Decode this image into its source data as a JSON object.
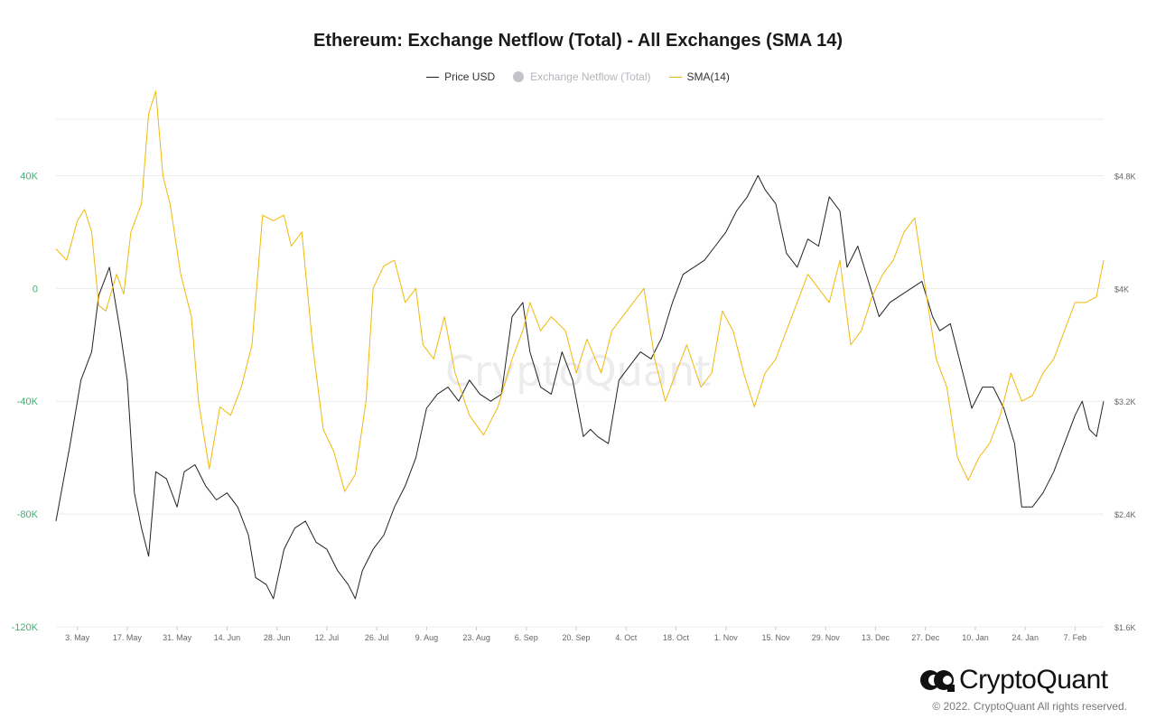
{
  "chart_data": {
    "type": "line",
    "title": "Ethereum: Exchange Netflow (Total) - All Exchanges (SMA 14)",
    "legend": {
      "placement": "top-center",
      "items": [
        {
          "label": "Price USD",
          "color": "#222222",
          "marker": "line",
          "active": true
        },
        {
          "label": "Exchange Netflow (Total)",
          "color": "#c2c2c8",
          "marker": "circle",
          "active": false
        },
        {
          "label": "SMA(14)",
          "color": "#f0b90b",
          "marker": "line",
          "active": true
        }
      ]
    },
    "y_left": {
      "range": [
        -120000,
        60000
      ],
      "ticks": [
        40000,
        0,
        -40000,
        -80000,
        -120000
      ],
      "tick_labels": [
        "40K",
        "0",
        "-40K",
        "-80K",
        "-120K"
      ],
      "color": "#3cb371"
    },
    "y_right": {
      "range": [
        1600,
        5200
      ],
      "ticks": [
        4800,
        4000,
        3200,
        2400,
        1600
      ],
      "tick_labels": [
        "$4.8K",
        "$4K",
        "$3.2K",
        "$2.4K",
        "$1.6K"
      ]
    },
    "x_range": [
      "2021-04-27",
      "2022-02-15"
    ],
    "x_ticks": [
      {
        "label": "3. May",
        "date": "2021-05-03"
      },
      {
        "label": "17. May",
        "date": "2021-05-17"
      },
      {
        "label": "31. May",
        "date": "2021-05-31"
      },
      {
        "label": "14. Jun",
        "date": "2021-06-14"
      },
      {
        "label": "28. Jun",
        "date": "2021-06-28"
      },
      {
        "label": "12. Jul",
        "date": "2021-07-12"
      },
      {
        "label": "26. Jul",
        "date": "2021-07-26"
      },
      {
        "label": "9. Aug",
        "date": "2021-08-09"
      },
      {
        "label": "23. Aug",
        "date": "2021-08-23"
      },
      {
        "label": "6. Sep",
        "date": "2021-09-06"
      },
      {
        "label": "20. Sep",
        "date": "2021-09-20"
      },
      {
        "label": "4. Oct",
        "date": "2021-10-04"
      },
      {
        "label": "18. Oct",
        "date": "2021-10-18"
      },
      {
        "label": "1. Nov",
        "date": "2021-11-01"
      },
      {
        "label": "15. Nov",
        "date": "2021-11-15"
      },
      {
        "label": "29. Nov",
        "date": "2021-11-29"
      },
      {
        "label": "13. Dec",
        "date": "2021-12-13"
      },
      {
        "label": "27. Dec",
        "date": "2021-12-27"
      },
      {
        "label": "10. Jan",
        "date": "2022-01-10"
      },
      {
        "label": "24. Jan",
        "date": "2022-01-24"
      },
      {
        "label": "7. Feb",
        "date": "2022-02-07"
      }
    ],
    "grid": true,
    "series": [
      {
        "name": "Price USD",
        "axis": "right",
        "color": "#222222",
        "points": [
          [
            "2021-04-27",
            2350
          ],
          [
            "2021-05-01",
            2900
          ],
          [
            "2021-05-04",
            3350
          ],
          [
            "2021-05-07",
            3550
          ],
          [
            "2021-05-09",
            3950
          ],
          [
            "2021-05-12",
            4150
          ],
          [
            "2021-05-15",
            3700
          ],
          [
            "2021-05-17",
            3350
          ],
          [
            "2021-05-19",
            2550
          ],
          [
            "2021-05-21",
            2300
          ],
          [
            "2021-05-23",
            2100
          ],
          [
            "2021-05-25",
            2700
          ],
          [
            "2021-05-28",
            2650
          ],
          [
            "2021-05-31",
            2450
          ],
          [
            "2021-06-02",
            2700
          ],
          [
            "2021-06-05",
            2750
          ],
          [
            "2021-06-08",
            2600
          ],
          [
            "2021-06-11",
            2500
          ],
          [
            "2021-06-14",
            2550
          ],
          [
            "2021-06-17",
            2450
          ],
          [
            "2021-06-20",
            2250
          ],
          [
            "2021-06-22",
            1950
          ],
          [
            "2021-06-25",
            1900
          ],
          [
            "2021-06-27",
            1800
          ],
          [
            "2021-06-30",
            2150
          ],
          [
            "2021-07-03",
            2300
          ],
          [
            "2021-07-06",
            2350
          ],
          [
            "2021-07-09",
            2200
          ],
          [
            "2021-07-12",
            2150
          ],
          [
            "2021-07-15",
            2000
          ],
          [
            "2021-07-18",
            1900
          ],
          [
            "2021-07-20",
            1800
          ],
          [
            "2021-07-22",
            2000
          ],
          [
            "2021-07-25",
            2150
          ],
          [
            "2021-07-28",
            2250
          ],
          [
            "2021-07-31",
            2450
          ],
          [
            "2021-08-03",
            2600
          ],
          [
            "2021-08-06",
            2800
          ],
          [
            "2021-08-09",
            3150
          ],
          [
            "2021-08-12",
            3250
          ],
          [
            "2021-08-15",
            3300
          ],
          [
            "2021-08-18",
            3200
          ],
          [
            "2021-08-21",
            3350
          ],
          [
            "2021-08-24",
            3250
          ],
          [
            "2021-08-27",
            3200
          ],
          [
            "2021-08-30",
            3250
          ],
          [
            "2021-09-02",
            3800
          ],
          [
            "2021-09-05",
            3900
          ],
          [
            "2021-09-07",
            3550
          ],
          [
            "2021-09-10",
            3300
          ],
          [
            "2021-09-13",
            3250
          ],
          [
            "2021-09-16",
            3550
          ],
          [
            "2021-09-19",
            3350
          ],
          [
            "2021-09-22",
            2950
          ],
          [
            "2021-09-24",
            3000
          ],
          [
            "2021-09-26",
            2950
          ],
          [
            "2021-09-29",
            2900
          ],
          [
            "2021-10-02",
            3350
          ],
          [
            "2021-10-05",
            3450
          ],
          [
            "2021-10-08",
            3550
          ],
          [
            "2021-10-11",
            3500
          ],
          [
            "2021-10-14",
            3650
          ],
          [
            "2021-10-17",
            3900
          ],
          [
            "2021-10-20",
            4100
          ],
          [
            "2021-10-23",
            4150
          ],
          [
            "2021-10-26",
            4200
          ],
          [
            "2021-10-29",
            4300
          ],
          [
            "2021-11-01",
            4400
          ],
          [
            "2021-11-04",
            4550
          ],
          [
            "2021-11-07",
            4650
          ],
          [
            "2021-11-10",
            4800
          ],
          [
            "2021-11-12",
            4700
          ],
          [
            "2021-11-15",
            4600
          ],
          [
            "2021-11-18",
            4250
          ],
          [
            "2021-11-21",
            4150
          ],
          [
            "2021-11-24",
            4350
          ],
          [
            "2021-11-27",
            4300
          ],
          [
            "2021-11-30",
            4650
          ],
          [
            "2021-12-03",
            4550
          ],
          [
            "2021-12-05",
            4150
          ],
          [
            "2021-12-08",
            4300
          ],
          [
            "2021-12-11",
            4050
          ],
          [
            "2021-12-14",
            3800
          ],
          [
            "2021-12-17",
            3900
          ],
          [
            "2021-12-20",
            3950
          ],
          [
            "2021-12-23",
            4000
          ],
          [
            "2021-12-26",
            4050
          ],
          [
            "2021-12-29",
            3800
          ],
          [
            "2021-12-31",
            3700
          ],
          [
            "2022-01-03",
            3750
          ],
          [
            "2022-01-06",
            3450
          ],
          [
            "2022-01-09",
            3150
          ],
          [
            "2022-01-12",
            3300
          ],
          [
            "2022-01-15",
            3300
          ],
          [
            "2022-01-18",
            3150
          ],
          [
            "2022-01-21",
            2900
          ],
          [
            "2022-01-23",
            2450
          ],
          [
            "2022-01-26",
            2450
          ],
          [
            "2022-01-29",
            2550
          ],
          [
            "2022-02-01",
            2700
          ],
          [
            "2022-02-04",
            2900
          ],
          [
            "2022-02-07",
            3100
          ],
          [
            "2022-02-09",
            3200
          ],
          [
            "2022-02-11",
            3000
          ],
          [
            "2022-02-13",
            2950
          ],
          [
            "2022-02-15",
            3200
          ]
        ]
      },
      {
        "name": "SMA(14)",
        "axis": "left",
        "color": "#f0b90b",
        "points": [
          [
            "2021-04-27",
            14000
          ],
          [
            "2021-04-30",
            10000
          ],
          [
            "2021-05-03",
            24000
          ],
          [
            "2021-05-05",
            28000
          ],
          [
            "2021-05-07",
            20000
          ],
          [
            "2021-05-09",
            -6000
          ],
          [
            "2021-05-11",
            -8000
          ],
          [
            "2021-05-14",
            5000
          ],
          [
            "2021-05-16",
            -2000
          ],
          [
            "2021-05-18",
            20000
          ],
          [
            "2021-05-21",
            30000
          ],
          [
            "2021-05-23",
            62000
          ],
          [
            "2021-05-25",
            70000
          ],
          [
            "2021-05-27",
            40000
          ],
          [
            "2021-05-29",
            30000
          ],
          [
            "2021-06-01",
            5000
          ],
          [
            "2021-06-04",
            -10000
          ],
          [
            "2021-06-06",
            -40000
          ],
          [
            "2021-06-09",
            -64000
          ],
          [
            "2021-06-12",
            -42000
          ],
          [
            "2021-06-15",
            -45000
          ],
          [
            "2021-06-18",
            -35000
          ],
          [
            "2021-06-21",
            -20000
          ],
          [
            "2021-06-24",
            26000
          ],
          [
            "2021-06-27",
            24000
          ],
          [
            "2021-06-30",
            26000
          ],
          [
            "2021-07-02",
            15000
          ],
          [
            "2021-07-05",
            20000
          ],
          [
            "2021-07-08",
            -20000
          ],
          [
            "2021-07-11",
            -50000
          ],
          [
            "2021-07-14",
            -58000
          ],
          [
            "2021-07-17",
            -72000
          ],
          [
            "2021-07-20",
            -66000
          ],
          [
            "2021-07-23",
            -40000
          ],
          [
            "2021-07-25",
            0
          ],
          [
            "2021-07-28",
            8000
          ],
          [
            "2021-07-31",
            10000
          ],
          [
            "2021-08-03",
            -5000
          ],
          [
            "2021-08-06",
            0
          ],
          [
            "2021-08-08",
            -20000
          ],
          [
            "2021-08-11",
            -25000
          ],
          [
            "2021-08-14",
            -10000
          ],
          [
            "2021-08-17",
            -30000
          ],
          [
            "2021-08-21",
            -45000
          ],
          [
            "2021-08-25",
            -52000
          ],
          [
            "2021-08-29",
            -42000
          ],
          [
            "2021-09-02",
            -25000
          ],
          [
            "2021-09-05",
            -15000
          ],
          [
            "2021-09-07",
            -5000
          ],
          [
            "2021-09-10",
            -15000
          ],
          [
            "2021-09-13",
            -10000
          ],
          [
            "2021-09-17",
            -15000
          ],
          [
            "2021-09-20",
            -30000
          ],
          [
            "2021-09-23",
            -18000
          ],
          [
            "2021-09-27",
            -30000
          ],
          [
            "2021-09-30",
            -15000
          ],
          [
            "2021-10-03",
            -10000
          ],
          [
            "2021-10-06",
            -5000
          ],
          [
            "2021-10-09",
            0
          ],
          [
            "2021-10-12",
            -25000
          ],
          [
            "2021-10-15",
            -40000
          ],
          [
            "2021-10-18",
            -30000
          ],
          [
            "2021-10-21",
            -20000
          ],
          [
            "2021-10-25",
            -35000
          ],
          [
            "2021-10-28",
            -30000
          ],
          [
            "2021-10-31",
            -8000
          ],
          [
            "2021-11-03",
            -15000
          ],
          [
            "2021-11-06",
            -30000
          ],
          [
            "2021-11-09",
            -42000
          ],
          [
            "2021-11-12",
            -30000
          ],
          [
            "2021-11-15",
            -25000
          ],
          [
            "2021-11-18",
            -15000
          ],
          [
            "2021-11-21",
            -5000
          ],
          [
            "2021-11-24",
            5000
          ],
          [
            "2021-11-27",
            0
          ],
          [
            "2021-11-30",
            -5000
          ],
          [
            "2021-12-03",
            10000
          ],
          [
            "2021-12-06",
            -20000
          ],
          [
            "2021-12-09",
            -15000
          ],
          [
            "2021-12-12",
            -3000
          ],
          [
            "2021-12-15",
            5000
          ],
          [
            "2021-12-18",
            10000
          ],
          [
            "2021-12-21",
            20000
          ],
          [
            "2021-12-24",
            25000
          ],
          [
            "2021-12-27",
            0
          ],
          [
            "2021-12-30",
            -25000
          ],
          [
            "2022-01-02",
            -35000
          ],
          [
            "2022-01-05",
            -60000
          ],
          [
            "2022-01-08",
            -68000
          ],
          [
            "2022-01-11",
            -60000
          ],
          [
            "2022-01-14",
            -55000
          ],
          [
            "2022-01-17",
            -45000
          ],
          [
            "2022-01-20",
            -30000
          ],
          [
            "2022-01-23",
            -40000
          ],
          [
            "2022-01-26",
            -38000
          ],
          [
            "2022-01-29",
            -30000
          ],
          [
            "2022-02-01",
            -25000
          ],
          [
            "2022-02-04",
            -15000
          ],
          [
            "2022-02-07",
            -5000
          ],
          [
            "2022-02-10",
            -5000
          ],
          [
            "2022-02-13",
            -3000
          ],
          [
            "2022-02-15",
            10000
          ]
        ]
      }
    ]
  },
  "watermark": "CryptoQuant",
  "brand": {
    "name": "CryptoQuant"
  },
  "copyright": "© 2022. CryptoQuant All rights reserved."
}
